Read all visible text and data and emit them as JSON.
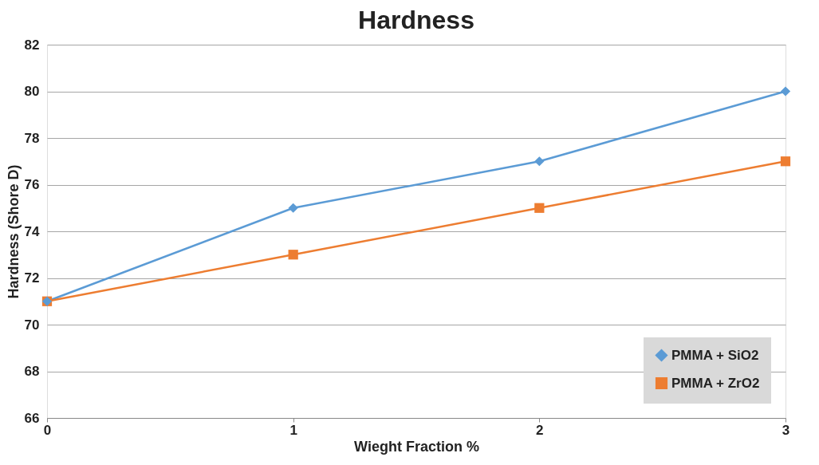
{
  "chart_data": {
    "type": "line",
    "title": "Hardness",
    "xlabel": "Wieght Fraction %",
    "ylabel": "Hardness (Shore D)",
    "x": [
      0,
      1,
      2,
      3
    ],
    "xlim": [
      0,
      3
    ],
    "xticks": [
      0,
      1,
      2,
      3
    ],
    "ylim": [
      66,
      82
    ],
    "yticks": [
      66,
      68,
      70,
      72,
      74,
      76,
      78,
      80,
      82
    ],
    "grid": "y",
    "legend": "bottom right",
    "line_style": "solid",
    "series": [
      {
        "name": "PMMA + SiO2",
        "color": "#5b9bd5",
        "marker": "diamond",
        "values": [
          71,
          75,
          77,
          80
        ]
      },
      {
        "name": "PMMA + ZrO2",
        "color": "#ed7d31",
        "marker": "square",
        "values": [
          71,
          73,
          75,
          77
        ]
      }
    ]
  }
}
